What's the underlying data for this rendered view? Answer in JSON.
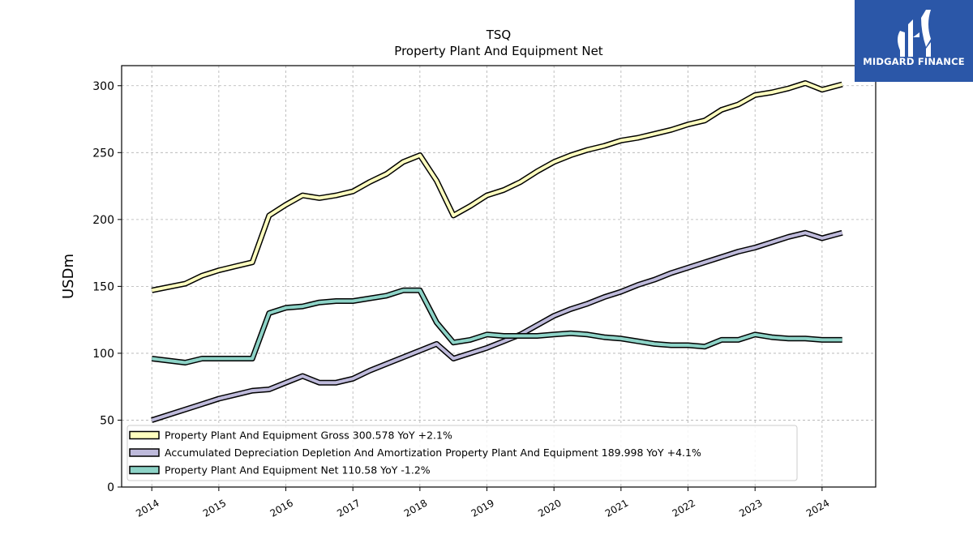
{
  "chart_data": {
    "type": "line",
    "title": "TSQ",
    "subtitle": "Property Plant And Equipment Net",
    "xlabel": "",
    "ylabel": "USDm",
    "ylim": [
      0,
      315
    ],
    "xlim": [
      2013.55,
      2024.8
    ],
    "yticks": [
      0,
      50,
      100,
      150,
      200,
      250,
      300
    ],
    "xticks": [
      "2014",
      "2015",
      "2016",
      "2017",
      "2018",
      "2019",
      "2020",
      "2021",
      "2022",
      "2023",
      "2024"
    ],
    "grid": true,
    "legend_position": "lower-left",
    "x": [
      2014.0,
      2014.5,
      2014.75,
      2015.0,
      2015.25,
      2015.5,
      2015.75,
      2016.0,
      2016.25,
      2016.5,
      2016.75,
      2017.0,
      2017.25,
      2017.5,
      2017.75,
      2018.0,
      2018.25,
      2018.5,
      2018.75,
      2019.0,
      2019.25,
      2019.5,
      2019.75,
      2020.0,
      2020.25,
      2020.5,
      2020.75,
      2021.0,
      2021.25,
      2021.5,
      2021.75,
      2022.0,
      2022.25,
      2022.5,
      2022.75,
      2023.0,
      2023.25,
      2023.5,
      2023.75,
      2024.0,
      2024.3
    ],
    "series": [
      {
        "name": "Property Plant And Equipment Gross",
        "legend": "Property Plant And Equipment Gross  300.578 YoY +2.1%",
        "color": "#ffffbf",
        "values": [
          147,
          152,
          158,
          162,
          165,
          168,
          203,
          211,
          218,
          216,
          218,
          221,
          228,
          234,
          243,
          248,
          229,
          203,
          210,
          218,
          222,
          228,
          236,
          243,
          248,
          252,
          255,
          259,
          261,
          264,
          267,
          271,
          274,
          282,
          286,
          293,
          295,
          298,
          302,
          297,
          301
        ]
      },
      {
        "name": "Accumulated Depreciation Depletion And Amortization Property Plant And Equipment",
        "legend": "Accumulated Depreciation Depletion And Amortization Property Plant And Equipment  189.998 YoY +4.1%",
        "color": "#bebadb",
        "values": [
          50,
          58,
          62,
          66,
          69,
          72,
          73,
          78,
          83,
          78,
          78,
          81,
          87,
          92,
          97,
          102,
          107,
          96,
          100,
          104,
          109,
          114,
          121,
          128,
          133,
          137,
          142,
          146,
          151,
          155,
          160,
          164,
          168,
          172,
          176,
          179,
          183,
          187,
          190,
          186,
          190
        ]
      },
      {
        "name": "Property Plant And Equipment Net",
        "legend": "Property Plant And Equipment Net  110.58 YoY -1.2%",
        "color": "#8dd3c7",
        "values": [
          96,
          93,
          96,
          96,
          96,
          96,
          130,
          134,
          135,
          138,
          139,
          139,
          141,
          143,
          147,
          147,
          123,
          108,
          110,
          114,
          113,
          113,
          113,
          114,
          115,
          114,
          112,
          111,
          109,
          107,
          106,
          106,
          105,
          110,
          110,
          114,
          112,
          111,
          111,
          110,
          110
        ]
      }
    ]
  },
  "logo": {
    "text": "MIDGARD FINANCE",
    "color": "#2b57a8"
  }
}
